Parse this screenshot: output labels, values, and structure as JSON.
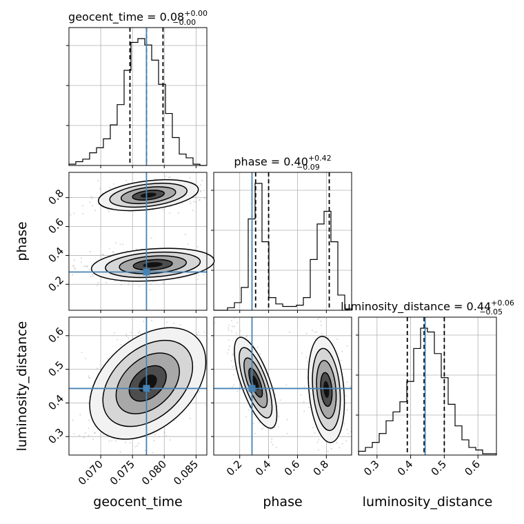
{
  "chart_data": {
    "type": "corner",
    "parameters": [
      "geocent_time",
      "phase",
      "luminosity_distance"
    ],
    "axis_labels": {
      "geocent_time": "geocent_time",
      "phase": "phase",
      "luminosity_distance": "luminosity_distance"
    },
    "ranges": {
      "geocent_time": [
        0.065,
        0.0867
      ],
      "phase": [
        0.02,
        0.975
      ],
      "luminosity_distance": [
        0.245,
        0.655
      ]
    },
    "ticks": {
      "geocent_time": [
        {
          "value": 0.07,
          "label": "0.070"
        },
        {
          "value": 0.075,
          "label": "0.075"
        },
        {
          "value": 0.08,
          "label": "0.080"
        },
        {
          "value": 0.085,
          "label": "0.085"
        }
      ],
      "phase": [
        {
          "value": 0.2,
          "label": "0.2"
        },
        {
          "value": 0.4,
          "label": "0.4"
        },
        {
          "value": 0.6,
          "label": "0.6"
        },
        {
          "value": 0.8,
          "label": "0.8"
        }
      ],
      "luminosity_distance": [
        {
          "value": 0.3,
          "label": "0.3"
        },
        {
          "value": 0.4,
          "label": "0.4"
        },
        {
          "value": 0.5,
          "label": "0.5"
        },
        {
          "value": 0.6,
          "label": "0.6"
        }
      ]
    },
    "truths": {
      "geocent_time": 0.0772,
      "phase": 0.285,
      "luminosity_distance": 0.443
    },
    "summaries": {
      "geocent_time": {
        "name": "geocent_time",
        "median": "0.08",
        "plus": "+0.00",
        "minus": "−0.00",
        "q16": 0.0746,
        "q50": 0.0772,
        "q84": 0.0798
      },
      "phase": {
        "name": "phase",
        "median": "0.40",
        "plus": "+0.42",
        "minus": "−0.09",
        "q16": 0.31,
        "q50": 0.4,
        "q84": 0.82
      },
      "luminosity_distance": {
        "name": "luminosity_distance",
        "median": "0.44",
        "plus": "+0.06",
        "minus": "−0.05",
        "q16": 0.39,
        "q50": 0.44,
        "q84": 0.5
      }
    },
    "histograms": {
      "geocent_time": {
        "edges": [
          0.065,
          0.06608,
          0.06717,
          0.06825,
          0.06934,
          0.07042,
          0.07151,
          0.07259,
          0.07368,
          0.07476,
          0.07585,
          0.07693,
          0.07802,
          0.0791,
          0.08019,
          0.08127,
          0.08236,
          0.08344,
          0.08453,
          0.08561,
          0.0867
        ],
        "counts": [
          0.01,
          0.03,
          0.05,
          0.1,
          0.14,
          0.21,
          0.32,
          0.48,
          0.75,
          0.97,
          1.0,
          0.95,
          0.83,
          0.64,
          0.41,
          0.22,
          0.09,
          0.06,
          0.01,
          0.0
        ]
      },
      "phase": {
        "edges": [
          0.02,
          0.06775,
          0.1155,
          0.16325,
          0.211,
          0.25875,
          0.3065,
          0.35425,
          0.402,
          0.44975,
          0.4975,
          0.54525,
          0.593,
          0.64075,
          0.6885,
          0.73625,
          0.784,
          0.83175,
          0.8795,
          0.92725,
          0.975
        ],
        "counts": [
          0.0,
          0.0,
          0.02,
          0.06,
          0.18,
          0.72,
          1.0,
          0.54,
          0.1,
          0.05,
          0.03,
          0.03,
          0.04,
          0.1,
          0.4,
          0.68,
          0.78,
          0.54,
          0.12,
          0.01
        ]
      },
      "luminosity_distance": {
        "edges": [
          0.245,
          0.2655,
          0.286,
          0.3065,
          0.327,
          0.3475,
          0.368,
          0.3885,
          0.409,
          0.4295,
          0.45,
          0.4705,
          0.491,
          0.5115,
          0.532,
          0.5525,
          0.573,
          0.5935,
          0.614,
          0.6345,
          0.655
        ],
        "counts": [
          0.03,
          0.06,
          0.1,
          0.17,
          0.27,
          0.34,
          0.42,
          0.58,
          0.84,
          1.0,
          0.97,
          0.8,
          0.61,
          0.4,
          0.23,
          0.12,
          0.06,
          0.04,
          0.01,
          0.01
        ]
      }
    },
    "contour_blobs": {
      "phase_vs_geocent_time": [
        {
          "cx": 0.0775,
          "cy": 0.817,
          "sx": 0.0036,
          "sy": 0.045,
          "rot": -7
        },
        {
          "cx": 0.0782,
          "cy": 0.335,
          "sx": 0.0044,
          "sy": 0.05,
          "rot": -4
        }
      ],
      "luminosity_distance_vs_geocent_time": [
        {
          "cx": 0.0774,
          "cy": 0.458,
          "sx": 0.0048,
          "sy": 0.06,
          "rot": -42
        }
      ],
      "luminosity_distance_vs_phase": [
        {
          "cx": 0.31,
          "cy": 0.46,
          "sx": 0.045,
          "sy": 0.065,
          "rot": -20
        },
        {
          "cx": 0.8,
          "cy": 0.44,
          "sx": 0.055,
          "sy": 0.072,
          "rot": -5
        }
      ]
    },
    "colors": {
      "truth": "#4682b4",
      "hist": "#000000",
      "grid": "#b0b0b0",
      "scatter": "#9a9a9a"
    }
  }
}
